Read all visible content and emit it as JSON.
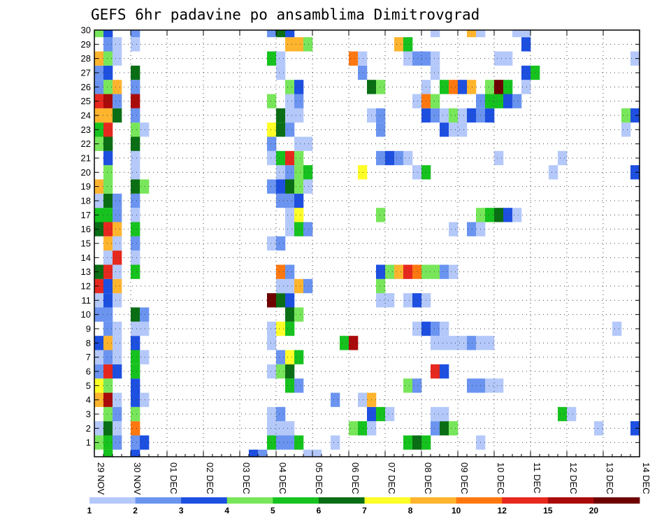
{
  "chart_data": {
    "type": "heatmap",
    "title": "GEFS 6hr padavine po ansamblima Dimitrovgrad",
    "xlabel": "",
    "ylabel": "",
    "x_ticks": [
      "29 NOV",
      "30 NOV",
      "01 DEC",
      "02 DEC",
      "03 DEC",
      "04 DEC",
      "05 DEC",
      "06 DEC",
      "07 DEC",
      "08 DEC",
      "09 DEC",
      "10 DEC",
      "11 DEC",
      "12 DEC",
      "13 DEC",
      "14 DEC"
    ],
    "y_ticks": [
      "1",
      "2",
      "3",
      "4",
      "5",
      "6",
      "7",
      "8",
      "9",
      "10",
      "11",
      "12",
      "13",
      "14",
      "15",
      "16",
      "17",
      "18",
      "19",
      "20",
      "21",
      "22",
      "23",
      "24",
      "25",
      "26",
      "27",
      "28",
      "29",
      "30"
    ],
    "x_step_unit": "6hr",
    "x_range": [
      0,
      60
    ],
    "y_range": [
      0,
      30
    ],
    "grid": true,
    "legend": {
      "placement": "bottom",
      "labels": [
        "1",
        "2",
        "3",
        "4",
        "5",
        "6",
        "7",
        "8",
        "10",
        "12",
        "15",
        "20"
      ],
      "colors": [
        "#b4c8fa",
        "#6a94f0",
        "#1d4fe0",
        "#78e65a",
        "#16c21e",
        "#0a6e14",
        "#ffff28",
        "#ffb42e",
        "#ff780f",
        "#e6281e",
        "#aa0a0a",
        "#6e0000"
      ]
    },
    "cells": [
      [
        0,
        1,
        4
      ],
      [
        1,
        1,
        5
      ],
      [
        2,
        1,
        2
      ],
      [
        4,
        1,
        2
      ],
      [
        5,
        1,
        3
      ],
      [
        19,
        1,
        5
      ],
      [
        20,
        1,
        2
      ],
      [
        21,
        1,
        2
      ],
      [
        22,
        1,
        5
      ],
      [
        26,
        1,
        1
      ],
      [
        34,
        1,
        5
      ],
      [
        35,
        1,
        6
      ],
      [
        36,
        1,
        5
      ],
      [
        42,
        1,
        1
      ],
      [
        0,
        2,
        1
      ],
      [
        1,
        2,
        6
      ],
      [
        2,
        2,
        1
      ],
      [
        4,
        2,
        9
      ],
      [
        19,
        2,
        1
      ],
      [
        20,
        2,
        1
      ],
      [
        21,
        2,
        1
      ],
      [
        28,
        2,
        4
      ],
      [
        29,
        2,
        5
      ],
      [
        30,
        2,
        1
      ],
      [
        37,
        2,
        2
      ],
      [
        38,
        2,
        6
      ],
      [
        39,
        2,
        4
      ],
      [
        55,
        2,
        1
      ],
      [
        59,
        2,
        3
      ],
      [
        1,
        3,
        4
      ],
      [
        2,
        3,
        2
      ],
      [
        4,
        3,
        4
      ],
      [
        19,
        3,
        1
      ],
      [
        20,
        3,
        2
      ],
      [
        30,
        3,
        3
      ],
      [
        31,
        3,
        5
      ],
      [
        32,
        3,
        1
      ],
      [
        37,
        3,
        1
      ],
      [
        38,
        3,
        1
      ],
      [
        51,
        3,
        5
      ],
      [
        52,
        3,
        1
      ],
      [
        0,
        4,
        8
      ],
      [
        1,
        4,
        11
      ],
      [
        2,
        4,
        1
      ],
      [
        4,
        4,
        3
      ],
      [
        5,
        4,
        1
      ],
      [
        26,
        4,
        2
      ],
      [
        29,
        4,
        1
      ],
      [
        30,
        4,
        8
      ],
      [
        0,
        5,
        7
      ],
      [
        1,
        5,
        4
      ],
      [
        4,
        5,
        3
      ],
      [
        21,
        5,
        5
      ],
      [
        22,
        5,
        2
      ],
      [
        34,
        5,
        4
      ],
      [
        35,
        5,
        2
      ],
      [
        41,
        5,
        2
      ],
      [
        42,
        5,
        2
      ],
      [
        43,
        5,
        1
      ],
      [
        44,
        5,
        1
      ],
      [
        0,
        6,
        2
      ],
      [
        1,
        6,
        10
      ],
      [
        2,
        6,
        3
      ],
      [
        4,
        6,
        5
      ],
      [
        19,
        6,
        1
      ],
      [
        20,
        6,
        4
      ],
      [
        21,
        6,
        6
      ],
      [
        37,
        6,
        10
      ],
      [
        38,
        6,
        3
      ],
      [
        0,
        7,
        1
      ],
      [
        1,
        7,
        2
      ],
      [
        2,
        7,
        1
      ],
      [
        4,
        7,
        5
      ],
      [
        5,
        7,
        1
      ],
      [
        20,
        7,
        2
      ],
      [
        21,
        7,
        7
      ],
      [
        22,
        7,
        5
      ],
      [
        0,
        8,
        3
      ],
      [
        1,
        8,
        8
      ],
      [
        2,
        8,
        1
      ],
      [
        4,
        8,
        3
      ],
      [
        19,
        8,
        1
      ],
      [
        27,
        8,
        5
      ],
      [
        28,
        8,
        11
      ],
      [
        37,
        8,
        1
      ],
      [
        38,
        8,
        1
      ],
      [
        39,
        8,
        1
      ],
      [
        40,
        8,
        1
      ],
      [
        41,
        8,
        2
      ],
      [
        42,
        8,
        1
      ],
      [
        43,
        8,
        1
      ],
      [
        1,
        9,
        2
      ],
      [
        2,
        9,
        1
      ],
      [
        4,
        9,
        1
      ],
      [
        5,
        9,
        1
      ],
      [
        19,
        9,
        1
      ],
      [
        20,
        9,
        7
      ],
      [
        21,
        9,
        5
      ],
      [
        35,
        9,
        1
      ],
      [
        36,
        9,
        3
      ],
      [
        37,
        9,
        2
      ],
      [
        38,
        9,
        1
      ],
      [
        57,
        9,
        1
      ],
      [
        0,
        10,
        2
      ],
      [
        1,
        10,
        2
      ],
      [
        4,
        10,
        6
      ],
      [
        5,
        10,
        2
      ],
      [
        21,
        10,
        6
      ],
      [
        22,
        10,
        4
      ],
      [
        0,
        11,
        1
      ],
      [
        1,
        11,
        3
      ],
      [
        2,
        11,
        1
      ],
      [
        19,
        11,
        12
      ],
      [
        20,
        11,
        6
      ],
      [
        21,
        11,
        3
      ],
      [
        31,
        11,
        1
      ],
      [
        32,
        11,
        1
      ],
      [
        34,
        11,
        1
      ],
      [
        35,
        11,
        3
      ],
      [
        36,
        11,
        1
      ],
      [
        0,
        12,
        10
      ],
      [
        1,
        12,
        3
      ],
      [
        2,
        12,
        8
      ],
      [
        20,
        12,
        1
      ],
      [
        21,
        12,
        1
      ],
      [
        22,
        12,
        8
      ],
      [
        23,
        12,
        2
      ],
      [
        31,
        12,
        4
      ],
      [
        0,
        13,
        6
      ],
      [
        1,
        13,
        10
      ],
      [
        2,
        13,
        1
      ],
      [
        4,
        13,
        5
      ],
      [
        20,
        13,
        9
      ],
      [
        21,
        13,
        2
      ],
      [
        31,
        13,
        3
      ],
      [
        32,
        13,
        4
      ],
      [
        33,
        13,
        8
      ],
      [
        34,
        13,
        10
      ],
      [
        35,
        13,
        9
      ],
      [
        36,
        13,
        4
      ],
      [
        37,
        13,
        4
      ],
      [
        38,
        13,
        2
      ],
      [
        39,
        13,
        1
      ],
      [
        1,
        14,
        1
      ],
      [
        2,
        14,
        10
      ],
      [
        4,
        14,
        1
      ],
      [
        1,
        15,
        8
      ],
      [
        2,
        15,
        1
      ],
      [
        4,
        15,
        2
      ],
      [
        19,
        15,
        1
      ],
      [
        20,
        15,
        2
      ],
      [
        0,
        16,
        6
      ],
      [
        1,
        16,
        10
      ],
      [
        2,
        16,
        8
      ],
      [
        4,
        16,
        5
      ],
      [
        21,
        16,
        1
      ],
      [
        22,
        16,
        5
      ],
      [
        23,
        16,
        2
      ],
      [
        39,
        16,
        1
      ],
      [
        41,
        16,
        2
      ],
      [
        42,
        16,
        1
      ],
      [
        0,
        17,
        5
      ],
      [
        1,
        17,
        5
      ],
      [
        2,
        17,
        2
      ],
      [
        4,
        17,
        1
      ],
      [
        21,
        17,
        1
      ],
      [
        22,
        17,
        7
      ],
      [
        31,
        17,
        4
      ],
      [
        42,
        17,
        4
      ],
      [
        43,
        17,
        5
      ],
      [
        44,
        17,
        6
      ],
      [
        45,
        17,
        3
      ],
      [
        46,
        17,
        1
      ],
      [
        0,
        18,
        1
      ],
      [
        1,
        18,
        6
      ],
      [
        2,
        18,
        2
      ],
      [
        4,
        18,
        2
      ],
      [
        20,
        18,
        2
      ],
      [
        21,
        18,
        2
      ],
      [
        22,
        18,
        3
      ],
      [
        0,
        19,
        8
      ],
      [
        1,
        19,
        4
      ],
      [
        4,
        19,
        6
      ],
      [
        5,
        19,
        4
      ],
      [
        19,
        19,
        2
      ],
      [
        20,
        19,
        3
      ],
      [
        21,
        19,
        6
      ],
      [
        22,
        19,
        4
      ],
      [
        23,
        19,
        1
      ],
      [
        1,
        20,
        4
      ],
      [
        4,
        20,
        1
      ],
      [
        20,
        20,
        1
      ],
      [
        21,
        20,
        2
      ],
      [
        22,
        20,
        4
      ],
      [
        23,
        20,
        5
      ],
      [
        29,
        20,
        7
      ],
      [
        35,
        20,
        1
      ],
      [
        36,
        20,
        5
      ],
      [
        50,
        20,
        1
      ],
      [
        59,
        20,
        3
      ],
      [
        1,
        21,
        3
      ],
      [
        4,
        21,
        1
      ],
      [
        19,
        21,
        1
      ],
      [
        20,
        21,
        5
      ],
      [
        21,
        21,
        10
      ],
      [
        22,
        21,
        4
      ],
      [
        31,
        21,
        2
      ],
      [
        32,
        21,
        3
      ],
      [
        33,
        21,
        2
      ],
      [
        34,
        21,
        1
      ],
      [
        44,
        21,
        1
      ],
      [
        51,
        21,
        1
      ],
      [
        0,
        22,
        4
      ],
      [
        1,
        22,
        6
      ],
      [
        4,
        22,
        6
      ],
      [
        19,
        22,
        2
      ],
      [
        22,
        22,
        1
      ],
      [
        23,
        22,
        1
      ],
      [
        0,
        23,
        5
      ],
      [
        1,
        23,
        10
      ],
      [
        4,
        23,
        4
      ],
      [
        5,
        23,
        1
      ],
      [
        19,
        23,
        7
      ],
      [
        20,
        23,
        6
      ],
      [
        21,
        23,
        2
      ],
      [
        31,
        23,
        2
      ],
      [
        38,
        23,
        3
      ],
      [
        39,
        23,
        1
      ],
      [
        40,
        23,
        1
      ],
      [
        58,
        23,
        1
      ],
      [
        0,
        24,
        8
      ],
      [
        1,
        24,
        8
      ],
      [
        2,
        24,
        6
      ],
      [
        4,
        24,
        2
      ],
      [
        20,
        24,
        6
      ],
      [
        21,
        24,
        1
      ],
      [
        22,
        24,
        1
      ],
      [
        30,
        24,
        1
      ],
      [
        31,
        24,
        2
      ],
      [
        36,
        24,
        3
      ],
      [
        37,
        24,
        2
      ],
      [
        38,
        24,
        1
      ],
      [
        39,
        24,
        4
      ],
      [
        40,
        24,
        1
      ],
      [
        41,
        24,
        3
      ],
      [
        42,
        24,
        2
      ],
      [
        43,
        24,
        3
      ],
      [
        58,
        24,
        4
      ],
      [
        59,
        24,
        3
      ],
      [
        0,
        25,
        10
      ],
      [
        1,
        25,
        11
      ],
      [
        2,
        25,
        2
      ],
      [
        4,
        25,
        11
      ],
      [
        19,
        25,
        4
      ],
      [
        21,
        25,
        1
      ],
      [
        22,
        25,
        2
      ],
      [
        35,
        25,
        1
      ],
      [
        36,
        25,
        9
      ],
      [
        37,
        25,
        4
      ],
      [
        42,
        25,
        2
      ],
      [
        43,
        25,
        5
      ],
      [
        44,
        25,
        5
      ],
      [
        45,
        25,
        3
      ],
      [
        46,
        25,
        2
      ],
      [
        0,
        26,
        2
      ],
      [
        1,
        26,
        4
      ],
      [
        2,
        26,
        8
      ],
      [
        4,
        26,
        2
      ],
      [
        21,
        26,
        4
      ],
      [
        22,
        26,
        3
      ],
      [
        30,
        26,
        6
      ],
      [
        31,
        26,
        4
      ],
      [
        36,
        26,
        1
      ],
      [
        38,
        26,
        5
      ],
      [
        39,
        26,
        9
      ],
      [
        40,
        26,
        3
      ],
      [
        41,
        26,
        8
      ],
      [
        43,
        26,
        4
      ],
      [
        44,
        26,
        12
      ],
      [
        45,
        26,
        5
      ],
      [
        47,
        26,
        1
      ],
      [
        0,
        27,
        2
      ],
      [
        1,
        27,
        3
      ],
      [
        4,
        27,
        6
      ],
      [
        20,
        27,
        1
      ],
      [
        29,
        27,
        2
      ],
      [
        37,
        27,
        1
      ],
      [
        47,
        27,
        3
      ],
      [
        48,
        27,
        5
      ],
      [
        0,
        28,
        8
      ],
      [
        1,
        28,
        4
      ],
      [
        2,
        28,
        1
      ],
      [
        19,
        28,
        5
      ],
      [
        20,
        28,
        1
      ],
      [
        28,
        28,
        9
      ],
      [
        29,
        28,
        1
      ],
      [
        34,
        28,
        1
      ],
      [
        35,
        28,
        2
      ],
      [
        36,
        28,
        2
      ],
      [
        37,
        28,
        1
      ],
      [
        44,
        28,
        1
      ],
      [
        45,
        28,
        1
      ],
      [
        59,
        28,
        1
      ],
      [
        1,
        29,
        2
      ],
      [
        2,
        29,
        1
      ],
      [
        4,
        29,
        1
      ],
      [
        21,
        29,
        8
      ],
      [
        22,
        29,
        8
      ],
      [
        23,
        29,
        4
      ],
      [
        33,
        29,
        8
      ],
      [
        34,
        29,
        5
      ],
      [
        47,
        29,
        3
      ],
      [
        0,
        30,
        4
      ],
      [
        1,
        30,
        3
      ],
      [
        4,
        30,
        2
      ],
      [
        19,
        30,
        2
      ],
      [
        20,
        30,
        6
      ],
      [
        21,
        30,
        3
      ],
      [
        37,
        30,
        1
      ],
      [
        41,
        30,
        8
      ],
      [
        42,
        30,
        1
      ],
      [
        46,
        30,
        1
      ],
      [
        47,
        30,
        1
      ],
      [
        1,
        0,
        5
      ],
      [
        4,
        0,
        3
      ],
      [
        17,
        0,
        3
      ],
      [
        18,
        0,
        2
      ],
      [
        23,
        0,
        1
      ],
      [
        24,
        0,
        1
      ]
    ]
  }
}
